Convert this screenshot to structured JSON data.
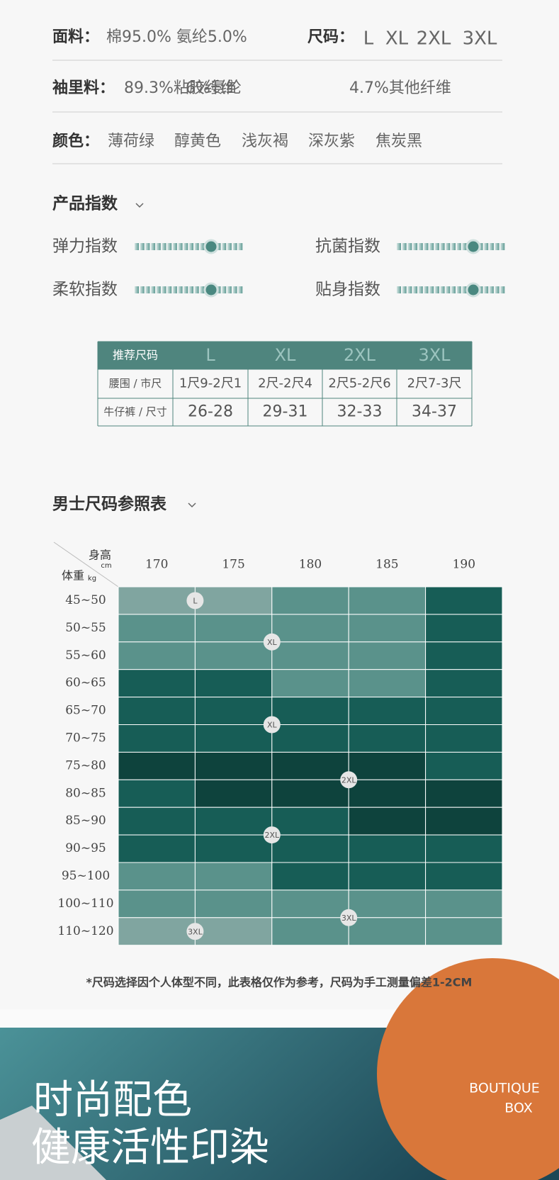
{
  "specs": {
    "fabric": {
      "label": "面料：",
      "value": "棉95.0%  氨纶5.0%"
    },
    "sizes": {
      "label": "尺码：",
      "values": [
        "L",
        "XL",
        "2XL",
        "3XL"
      ]
    },
    "lining": {
      "label": "袖里料：",
      "values": [
        "89.3%粘胶纤维",
        "6%氨纶",
        "4.7%其他纤维"
      ]
    },
    "colors": {
      "label": "颜色：",
      "values": [
        "薄荷绿",
        "醇黄色",
        "浅灰褐",
        "深灰紫",
        "焦炭黑"
      ]
    }
  },
  "product_index": {
    "title": "产品指数",
    "items": [
      "弹力指数",
      "抗菌指数",
      "柔软指数",
      "贴身指数"
    ]
  },
  "size_table": {
    "header": [
      "推荐尺码",
      "L",
      "XL",
      "2XL",
      "3XL"
    ],
    "rows": [
      [
        "腰围 / 市尺",
        "1尺9-2尺1",
        "2尺-2尺4",
        "2尺5-2尺6",
        "2尺7-3尺"
      ],
      [
        "牛仔裤 / 尺寸",
        "26-28",
        "29-31",
        "32-33",
        "34-37"
      ]
    ]
  },
  "size_chart": {
    "title": "男士尺码参照表",
    "height_label": "身高",
    "height_unit": "cm",
    "weight_label": "体重",
    "weight_unit": "kg",
    "heights": [
      "170",
      "175",
      "180",
      "185",
      "190"
    ],
    "weights": [
      "45~50",
      "50~55",
      "55~60",
      "60~65",
      "65~70",
      "70~75",
      "75~80",
      "80~85",
      "85~90",
      "90~95",
      "95~100",
      "100~110",
      "110~120"
    ],
    "badges": [
      "L",
      "XL",
      "XL",
      "2XL",
      "2XL",
      "3XL",
      "3XL"
    ],
    "note": "*尺码选择因个人体型不同，此表格仅作为参考，尺码为手工测量偏差1-2CM"
  },
  "banner": {
    "lines": [
      "时尚配色",
      "健康活性印染"
    ],
    "badge": [
      "BOUTIQUE",
      "BOX"
    ]
  }
}
